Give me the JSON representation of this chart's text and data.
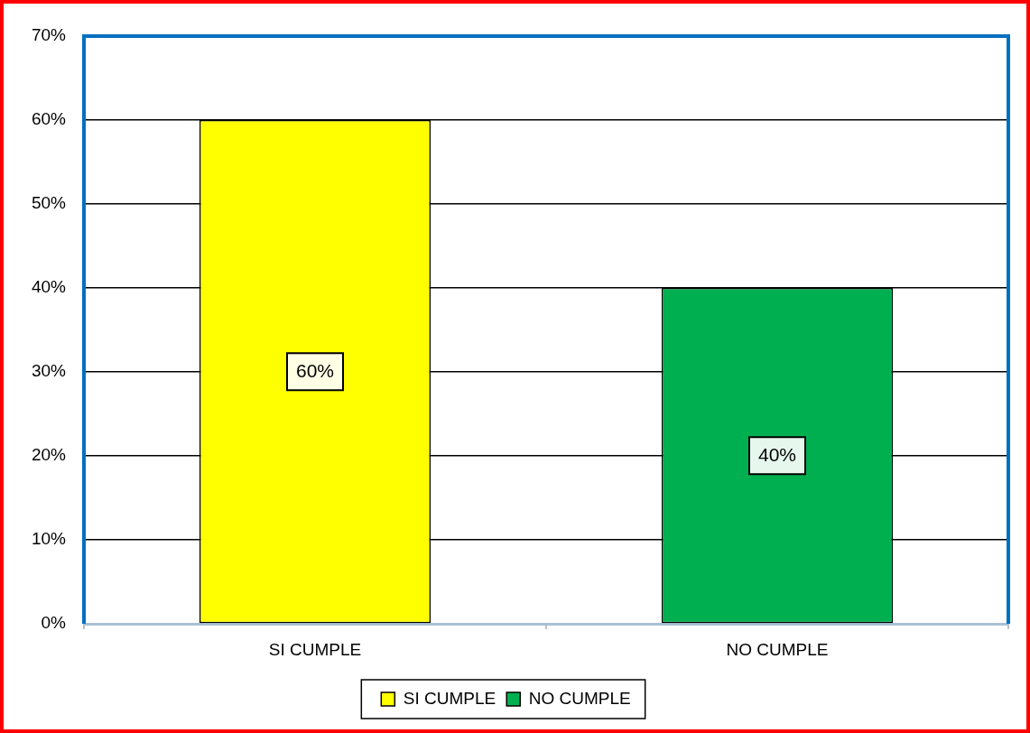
{
  "chart_data": {
    "type": "bar",
    "categories": [
      "SI CUMPLE",
      "NO CUMPLE"
    ],
    "series": [
      {
        "name": "SI CUMPLE",
        "color": "#ffff00",
        "values": [
          60,
          null
        ],
        "value_labels": [
          "60%",
          null
        ]
      },
      {
        "name": "NO CUMPLE",
        "color": "#00b050",
        "values": [
          null,
          40
        ],
        "value_labels": [
          null,
          "40%"
        ]
      }
    ],
    "ylim": [
      0,
      70
    ],
    "yticks": [
      {
        "value": 0,
        "label": "0%"
      },
      {
        "value": 10,
        "label": "10%"
      },
      {
        "value": 20,
        "label": "20%"
      },
      {
        "value": 30,
        "label": "30%"
      },
      {
        "value": 40,
        "label": "40%"
      },
      {
        "value": 50,
        "label": "50%"
      },
      {
        "value": 60,
        "label": "60%"
      },
      {
        "value": 70,
        "label": "70%"
      }
    ],
    "grid": "y",
    "legend": "bottom"
  }
}
